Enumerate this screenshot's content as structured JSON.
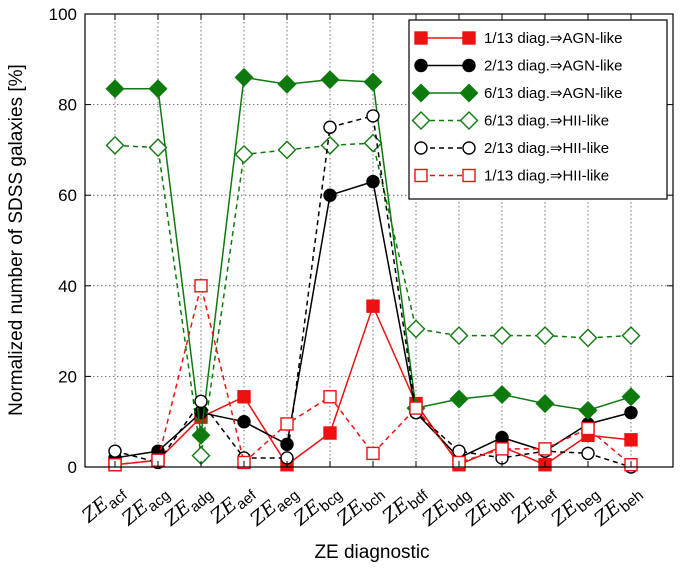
{
  "chart_data": {
    "type": "line",
    "ylabel": "Normalized number of SDSS galaxies [%]",
    "xlabel": "ZE diagnostic",
    "ylim": [
      0,
      100
    ],
    "yticks": [
      0,
      20,
      40,
      60,
      80,
      100
    ],
    "grid": true,
    "legend_position": "top-right",
    "categories": [
      {
        "prefix": "ZE",
        "sub": "acf"
      },
      {
        "prefix": "ZE",
        "sub": "acg"
      },
      {
        "prefix": "ZE",
        "sub": "adg"
      },
      {
        "prefix": "ZE",
        "sub": "aef"
      },
      {
        "prefix": "ZE",
        "sub": "aeg"
      },
      {
        "prefix": "ZE",
        "sub": "bcg"
      },
      {
        "prefix": "ZE",
        "sub": "bch"
      },
      {
        "prefix": "ZE",
        "sub": "bdf"
      },
      {
        "prefix": "ZE",
        "sub": "bdg"
      },
      {
        "prefix": "ZE",
        "sub": "bdh"
      },
      {
        "prefix": "ZE",
        "sub": "bef"
      },
      {
        "prefix": "ZE",
        "sub": "beg"
      },
      {
        "prefix": "ZE",
        "sub": "beh"
      }
    ],
    "series": [
      {
        "name": "1/13 diag.⇒AGN-like",
        "color": "#ee1111",
        "marker": "square",
        "filled": true,
        "dashed": false,
        "values": [
          0.5,
          1.5,
          11,
          15.5,
          0.5,
          7.5,
          35.5,
          14,
          0.5,
          4.5,
          0.5,
          7,
          6
        ]
      },
      {
        "name": "2/13 diag.⇒AGN-like",
        "color": "#000000",
        "marker": "circle",
        "filled": true,
        "dashed": false,
        "values": [
          2,
          3.5,
          12,
          10,
          5,
          60,
          63,
          12,
          2,
          6.5,
          3.5,
          9.5,
          12
        ]
      },
      {
        "name": "6/13 diag.⇒AGN-like",
        "color": "#0e7a0e",
        "marker": "diamond",
        "filled": true,
        "dashed": false,
        "values": [
          83.5,
          83.5,
          7,
          86,
          84.5,
          85.5,
          85,
          13,
          15,
          16,
          14,
          12.5,
          15.5
        ]
      },
      {
        "name": "6/13 diag.⇒HII-like",
        "color": "#0e7a0e",
        "marker": "diamond",
        "filled": false,
        "dashed": true,
        "values": [
          71,
          70.5,
          2.5,
          69,
          70,
          71,
          71.5,
          30.5,
          29,
          29,
          29,
          28.5,
          29
        ]
      },
      {
        "name": "2/13 diag.⇒HII-like",
        "color": "#000000",
        "marker": "circle",
        "filled": false,
        "dashed": true,
        "values": [
          3.5,
          1,
          14.5,
          2,
          2,
          75,
          77.5,
          12,
          3.5,
          2,
          3.5,
          3,
          0
        ]
      },
      {
        "name": "1/13 diag.⇒HII-like",
        "color": "#ee1111",
        "marker": "square",
        "filled": false,
        "dashed": true,
        "values": [
          0.5,
          1.5,
          40,
          1,
          9.5,
          15.5,
          3,
          13,
          1,
          4,
          4,
          8.5,
          0.5
        ]
      }
    ]
  }
}
